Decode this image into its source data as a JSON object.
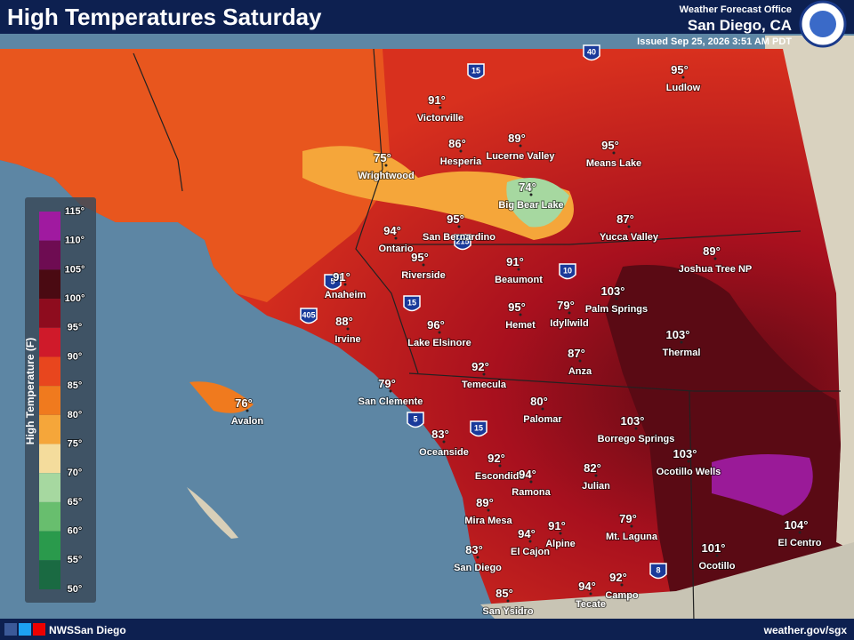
{
  "header": {
    "title": "High Temperatures Saturday",
    "office": "Weather Forecast Office",
    "location": "San Diego, CA",
    "issued": "Issued Sep 25, 2026 3:51 AM PDT"
  },
  "legend": {
    "title": "High Temperature (F)",
    "ticks": [
      "115°",
      "110°",
      "105°",
      "100°",
      "95°",
      "90°",
      "85°",
      "80°",
      "75°",
      "70°",
      "65°",
      "60°",
      "55°",
      "50°"
    ],
    "colors": [
      "#a01aa0",
      "#6e0c52",
      "#4a0a12",
      "#8e0c1e",
      "#cf1a2a",
      "#e8461e",
      "#f07a1e",
      "#f5a63a",
      "#f4dc9c",
      "#a6d8a0",
      "#68be6e",
      "#2a9a4c",
      "#1a6a42"
    ]
  },
  "cities": [
    {
      "name": "Victorville",
      "temp": "91°"
    },
    {
      "name": "Hesperia",
      "temp": "86°"
    },
    {
      "name": "Lucerne Valley",
      "temp": "89°"
    },
    {
      "name": "Means Lake",
      "temp": "95°"
    },
    {
      "name": "Ludlow",
      "temp": "95°"
    },
    {
      "name": "Wrightwood",
      "temp": "75°"
    },
    {
      "name": "Big Bear Lake",
      "temp": "74°"
    },
    {
      "name": "San Bernardino",
      "temp": "95°"
    },
    {
      "name": "Yucca Valley",
      "temp": "87°"
    },
    {
      "name": "Ontario",
      "temp": "94°"
    },
    {
      "name": "Joshua Tree NP",
      "temp": "89°"
    },
    {
      "name": "Riverside",
      "temp": "95°"
    },
    {
      "name": "Beaumont",
      "temp": "91°"
    },
    {
      "name": "Anaheim",
      "temp": "91°"
    },
    {
      "name": "Palm Springs",
      "temp": "103°"
    },
    {
      "name": "Idyllwild",
      "temp": "79°"
    },
    {
      "name": "Hemet",
      "temp": "95°"
    },
    {
      "name": "Irvine",
      "temp": "88°"
    },
    {
      "name": "Lake Elsinore",
      "temp": "96°"
    },
    {
      "name": "Thermal",
      "temp": "103°"
    },
    {
      "name": "Anza",
      "temp": "87°"
    },
    {
      "name": "Temecula",
      "temp": "92°"
    },
    {
      "name": "San Clemente",
      "temp": "79°"
    },
    {
      "name": "Avalon",
      "temp": "76°"
    },
    {
      "name": "Palomar",
      "temp": "80°"
    },
    {
      "name": "Borrego Springs",
      "temp": "103°"
    },
    {
      "name": "Oceanside",
      "temp": "83°"
    },
    {
      "name": "Ocotillo Wells",
      "temp": "103°"
    },
    {
      "name": "Escondido",
      "temp": "92°"
    },
    {
      "name": "Julian",
      "temp": "82°"
    },
    {
      "name": "Ramona",
      "temp": "94°"
    },
    {
      "name": "Mira Mesa",
      "temp": "89°"
    },
    {
      "name": "Mt. Laguna",
      "temp": "79°"
    },
    {
      "name": "El Centro",
      "temp": "104°"
    },
    {
      "name": "Alpine",
      "temp": "91°"
    },
    {
      "name": "El Cajon",
      "temp": "94°"
    },
    {
      "name": "San Diego",
      "temp": "83°"
    },
    {
      "name": "Ocotillo",
      "temp": "101°"
    },
    {
      "name": "Campo",
      "temp": "92°"
    },
    {
      "name": "Tecate",
      "temp": "94°"
    },
    {
      "name": "San Ysidro",
      "temp": "85°"
    }
  ],
  "highways": [
    "40",
    "15",
    "5",
    "405",
    "15",
    "215",
    "10",
    "5",
    "15",
    "8"
  ],
  "footer": {
    "handle": "NWSSan Diego",
    "url": "weather.gov/sgx"
  }
}
